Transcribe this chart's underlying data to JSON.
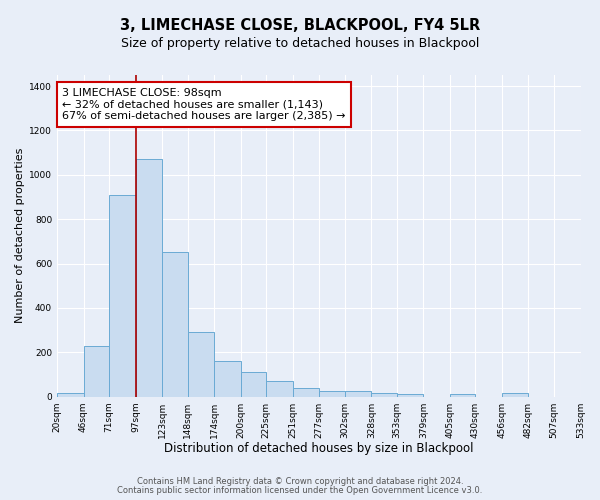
{
  "title": "3, LIMECHASE CLOSE, BLACKPOOL, FY4 5LR",
  "subtitle": "Size of property relative to detached houses in Blackpool",
  "xlabel": "Distribution of detached houses by size in Blackpool",
  "ylabel": "Number of detached properties",
  "bar_values": [
    15,
    230,
    910,
    1070,
    650,
    290,
    160,
    110,
    70,
    40,
    25,
    25,
    15,
    10,
    0,
    10,
    0,
    15,
    0,
    0
  ],
  "bin_edges": [
    20,
    46,
    71,
    97,
    123,
    148,
    174,
    200,
    225,
    251,
    277,
    302,
    328,
    353,
    379,
    405,
    430,
    456,
    482,
    507,
    533
  ],
  "bin_labels": [
    "20sqm",
    "46sqm",
    "71sqm",
    "97sqm",
    "123sqm",
    "148sqm",
    "174sqm",
    "200sqm",
    "225sqm",
    "251sqm",
    "277sqm",
    "302sqm",
    "328sqm",
    "353sqm",
    "379sqm",
    "405sqm",
    "430sqm",
    "456sqm",
    "482sqm",
    "507sqm",
    "533sqm"
  ],
  "bar_color": "#c9dcf0",
  "bar_edge_color": "#6aaad4",
  "property_line_x": 97,
  "property_line_color": "#aa0000",
  "annotation_text": "3 LIMECHASE CLOSE: 98sqm\n← 32% of detached houses are smaller (1,143)\n67% of semi-detached houses are larger (2,385) →",
  "annotation_box_color": "#ffffff",
  "annotation_box_edge_color": "#cc0000",
  "ylim": [
    0,
    1450
  ],
  "yticks": [
    0,
    200,
    400,
    600,
    800,
    1000,
    1200,
    1400
  ],
  "bg_color": "#e8eef8",
  "plot_bg_color": "#e8eef8",
  "footer1": "Contains HM Land Registry data © Crown copyright and database right 2024.",
  "footer2": "Contains public sector information licensed under the Open Government Licence v3.0.",
  "grid_color": "#ffffff",
  "title_fontsize": 10.5,
  "subtitle_fontsize": 9,
  "xlabel_fontsize": 8.5,
  "ylabel_fontsize": 8,
  "annotation_fontsize": 8,
  "footer_fontsize": 6,
  "tick_fontsize": 6.5
}
